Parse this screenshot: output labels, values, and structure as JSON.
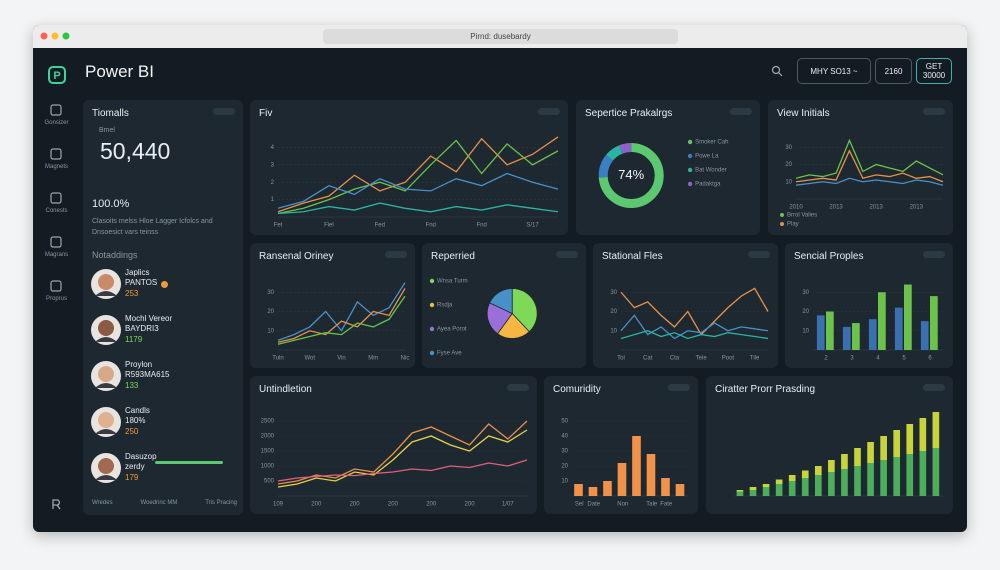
{
  "browser": {
    "address": "Pirnd: dusebardy"
  },
  "app": {
    "title": "Power BI",
    "controls": [
      "MHY  SO13 ~",
      "2160"
    ],
    "get": {
      "label": "GET",
      "value": "30000"
    }
  },
  "sidebar": [
    "Gonsizer",
    "Magnets",
    "Conests",
    "Magrans",
    "Proprus"
  ],
  "kpi": {
    "title": "Tiomalls",
    "label": "Bmel",
    "value": "50,440",
    "percent": "100.0%",
    "note": "Clasoits melss Hloe Lagger Icfolcs and Dnsoesict vars teinss"
  },
  "people": {
    "title": "Notaddings",
    "items": [
      {
        "name": "Japlics",
        "role": "PANTOS",
        "value": 253
      },
      {
        "name": "Mochl Vereor",
        "role": "BAYDRI3",
        "value": 1179
      },
      {
        "name": "Proylon",
        "role": "R593MA615",
        "value": 133
      },
      {
        "name": "Candls",
        "role": "180%",
        "value": 250
      },
      {
        "name": "Dasuzop",
        "role": "zerdy",
        "value": 179
      }
    ]
  },
  "footer": [
    "Wredes",
    "Woedrinc MM",
    "Tris Pracing"
  ],
  "chart_data": [
    {
      "type": "line",
      "title": "Fiv",
      "ylim": [
        0,
        5
      ],
      "yticks": [
        1,
        2,
        3,
        4
      ],
      "categories": [
        "Fet",
        null,
        "Fiel",
        null,
        "Fed",
        null,
        "Fnd",
        null,
        "Fnd",
        null,
        "S/17",
        null
      ],
      "series": [
        {
          "color": "#e8914a",
          "values": [
            0.3,
            0.8,
            1.2,
            2.4,
            1.5,
            2.0,
            3.5,
            2.6,
            4.5,
            3.0,
            3.6,
            4.6
          ]
        },
        {
          "color": "#6cc24a",
          "values": [
            0.2,
            0.5,
            1.0,
            1.6,
            2.0,
            1.5,
            3.0,
            4.4,
            2.5,
            4.2,
            3.0,
            3.8
          ]
        },
        {
          "color": "#4a90c8",
          "values": [
            0.5,
            0.9,
            1.8,
            1.3,
            2.2,
            1.6,
            1.5,
            2.2,
            1.8,
            2.5,
            2.0,
            1.6
          ]
        },
        {
          "color": "#2bb3a3",
          "values": [
            0.2,
            0.3,
            0.6,
            0.4,
            0.8,
            0.5,
            0.3,
            0.6,
            0.4,
            0.7,
            0.5,
            0.3
          ]
        }
      ]
    },
    {
      "type": "donut",
      "title": "Sepertice Prakalrgs",
      "categories": [
        "Smoker Cah",
        "Powe La",
        "Bat Wonder",
        "Padaktga"
      ],
      "values": [
        74,
        12,
        8,
        6
      ],
      "value_labels": [
        "74%",
        null,
        null,
        null
      ],
      "colors": [
        "#5cc870",
        "#3a7fc4",
        "#2bb3a3",
        "#8e63c9"
      ]
    },
    {
      "type": "line",
      "title": "View Initials",
      "ylim": [
        0,
        40
      ],
      "yticks": [
        10,
        20,
        30
      ],
      "categories": [
        "2010",
        null,
        null,
        "2013",
        null,
        null,
        "2013",
        null,
        null,
        "2013",
        null,
        null
      ],
      "series": [
        {
          "name": "Brrol Valies",
          "color": "#6cc24a",
          "values": [
            12,
            14,
            13,
            15,
            34,
            16,
            20,
            18,
            16,
            22,
            18,
            14
          ]
        },
        {
          "name": "Play",
          "color": "#e8914a",
          "values": [
            10,
            11,
            12,
            11,
            28,
            12,
            14,
            13,
            15,
            12,
            13,
            10
          ]
        },
        {
          "color": "#4a90c8",
          "values": [
            8,
            9,
            10,
            9,
            12,
            10,
            11,
            10,
            9,
            11,
            10,
            8
          ]
        }
      ]
    },
    {
      "type": "line",
      "title": "Ransenal Oriney",
      "ylim": [
        0,
        40
      ],
      "yticks": [
        10,
        20,
        30
      ],
      "categories": [
        "Tuln",
        null,
        "Wot",
        null,
        "Vin",
        null,
        "Mm",
        null,
        "Nic"
      ],
      "series": [
        {
          "color": "#4a90c8",
          "values": [
            5,
            8,
            12,
            20,
            10,
            25,
            18,
            22,
            35
          ]
        },
        {
          "color": "#e8914a",
          "values": [
            4,
            6,
            10,
            8,
            15,
            12,
            20,
            18,
            32
          ]
        },
        {
          "color": "#6cc24a",
          "values": [
            3,
            5,
            7,
            9,
            8,
            14,
            12,
            16,
            28
          ]
        }
      ]
    },
    {
      "type": "pie",
      "title": "Reperried",
      "categories": [
        "Wnsa Turm",
        "Rsdja",
        "Ayea Porot",
        "Fyse Ave"
      ],
      "values": [
        38,
        22,
        22,
        18
      ],
      "colors": [
        "#7ed957",
        "#f5b642",
        "#9b6fd8",
        "#4a90c8"
      ]
    },
    {
      "type": "line",
      "title": "Stational Fles",
      "ylim": [
        0,
        40
      ],
      "yticks": [
        10,
        20,
        30
      ],
      "categories": [
        "Tol",
        null,
        "Cat",
        null,
        "Cta",
        null,
        "Tele",
        null,
        "Poot",
        null,
        "Tile",
        null
      ],
      "series": [
        {
          "color": "#e8914a",
          "values": [
            30,
            22,
            25,
            18,
            12,
            20,
            8,
            15,
            22,
            28,
            32,
            20
          ]
        },
        {
          "color": "#4a90c8",
          "values": [
            10,
            18,
            8,
            12,
            6,
            10,
            9,
            14,
            10,
            12,
            11,
            10
          ]
        },
        {
          "color": "#2bb3a3",
          "values": [
            6,
            8,
            10,
            7,
            9,
            6,
            8,
            7,
            9,
            8,
            7,
            6
          ]
        }
      ]
    },
    {
      "type": "bar",
      "title": "Sencial Proples",
      "ylim": [
        0,
        40
      ],
      "yticks": [
        10,
        20,
        30
      ],
      "categories": [
        "2",
        "3",
        "4",
        "5",
        "6"
      ],
      "series": [
        {
          "color": "#3a6fb0",
          "values": [
            18,
            12,
            16,
            22,
            15
          ]
        },
        {
          "color": "#6cc24a",
          "values": [
            20,
            14,
            30,
            34,
            28
          ]
        }
      ]
    },
    {
      "type": "line",
      "title": "Untindletion",
      "ylim": [
        0,
        3000
      ],
      "yticks": [
        500,
        1000,
        1500,
        2000,
        2500
      ],
      "categories": [
        "109",
        null,
        "200",
        null,
        "200",
        null,
        "200",
        null,
        "200",
        null,
        "200",
        null,
        "1/07",
        null
      ],
      "series": [
        {
          "color": "#e8914a",
          "values": [
            400,
            500,
            700,
            600,
            900,
            800,
            1400,
            2100,
            2300,
            2000,
            1700,
            2400,
            1900,
            2500
          ]
        },
        {
          "color": "#e5d24a",
          "values": [
            300,
            400,
            600,
            500,
            800,
            700,
            1200,
            1800,
            2000,
            1700,
            1500,
            2000,
            1800,
            2200
          ]
        },
        {
          "color": "#e0607a",
          "values": [
            500,
            600,
            650,
            700,
            680,
            750,
            800,
            900,
            850,
            1000,
            950,
            1100,
            1000,
            1200
          ]
        }
      ]
    },
    {
      "type": "bar",
      "title": "Comuridity",
      "ylim": [
        0,
        60
      ],
      "yticks": [
        10,
        20,
        30,
        40,
        50
      ],
      "categories": [
        "Sel",
        "Date",
        null,
        "Non",
        null,
        "Tale",
        "Fate",
        null
      ],
      "series": [
        {
          "color": "#f0924a",
          "values": [
            8,
            6,
            10,
            22,
            40,
            28,
            12,
            8
          ]
        }
      ]
    },
    {
      "type": "bar",
      "stacked": true,
      "title": "Ciratter Prorr Prasding",
      "ylim": [
        0,
        60
      ],
      "yticks": [],
      "categories": [
        null,
        null,
        null,
        null,
        null,
        null,
        null,
        null,
        null,
        null,
        null,
        null,
        null,
        null,
        null,
        null
      ],
      "series": [
        {
          "color": "#4cae5a",
          "values": [
            3,
            4,
            6,
            8,
            10,
            12,
            14,
            16,
            18,
            20,
            22,
            24,
            26,
            28,
            30,
            32
          ]
        },
        {
          "color": "#c7d43a",
          "values": [
            1,
            2,
            2,
            3,
            4,
            5,
            6,
            8,
            10,
            12,
            14,
            16,
            18,
            20,
            22,
            24
          ]
        }
      ]
    }
  ]
}
